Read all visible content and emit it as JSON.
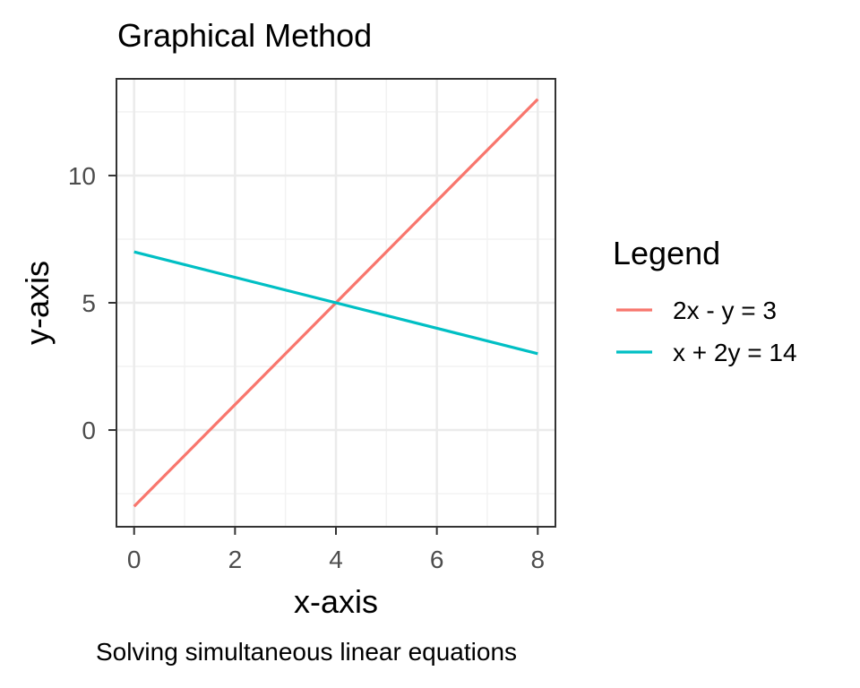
{
  "chart_data": {
    "type": "line",
    "title": "Graphical Method",
    "xlabel": "x-axis",
    "ylabel": "y-axis",
    "caption": "Solving simultaneous linear equations",
    "xlim": [
      -0.35,
      8.35
    ],
    "ylim": [
      -3.8,
      13.8
    ],
    "x_ticks": [
      0,
      2,
      4,
      6,
      8
    ],
    "y_ticks": [
      0,
      5,
      10
    ],
    "x_tick_labels": [
      "0",
      "2",
      "4",
      "6",
      "8"
    ],
    "y_tick_labels": [
      "0",
      "5",
      "10"
    ],
    "grid": true,
    "legend": {
      "title": "Legend",
      "placement": "right"
    },
    "series": [
      {
        "name": "2x - y = 3",
        "color": "#F8766D",
        "x": [
          0,
          8
        ],
        "y": [
          -3,
          13
        ]
      },
      {
        "name": "x + 2y = 14",
        "color": "#00BFC4",
        "x": [
          0,
          8
        ],
        "y": [
          7,
          3
        ]
      }
    ]
  }
}
